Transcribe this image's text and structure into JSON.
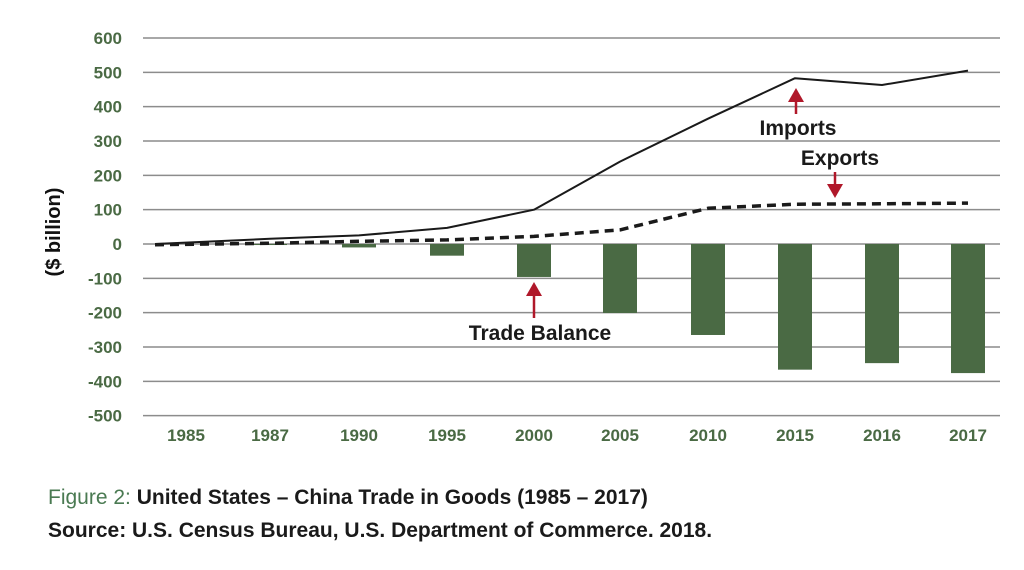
{
  "chart_data": {
    "type": "bar+line",
    "categories": [
      "1985",
      "1987",
      "1990",
      "1995",
      "2000",
      "2005",
      "2010",
      "2015",
      "2016",
      "2017"
    ],
    "ylabel": "($ billion)",
    "ylim": [
      -500,
      600
    ],
    "yticks": [
      600,
      500,
      400,
      300,
      200,
      100,
      0,
      -100,
      -200,
      -300,
      -400,
      -500
    ],
    "grid": true,
    "series": [
      {
        "name": "Imports",
        "type": "line",
        "style": "solid",
        "values": [
          0,
          15,
          25,
          47,
          100,
          240,
          365,
          483,
          463,
          505
        ]
      },
      {
        "name": "Exports",
        "type": "line",
        "style": "dashed",
        "values": [
          -2,
          2,
          8,
          12,
          22,
          41,
          104,
          116,
          117,
          119
        ]
      },
      {
        "name": "Trade Balance",
        "type": "bar",
        "values": [
          0,
          -3,
          -10,
          -34,
          -96,
          -201,
          -265,
          -366,
          -347,
          -376
        ]
      }
    ],
    "annotations": [
      {
        "text": "Imports",
        "target": "Imports",
        "at": "2015"
      },
      {
        "text": "Exports",
        "target": "Exports",
        "at": "2015-2016"
      },
      {
        "text": "Trade Balance",
        "target": "Trade Balance",
        "at": "2000"
      }
    ],
    "colors": {
      "bar": "#4a6a44",
      "tick": "#4a6a44",
      "line": "#1a1a1a",
      "arrow": "#b0182a",
      "grid": "#8c8c8c"
    }
  },
  "caption": {
    "figure_label": "Figure 2:",
    "title": "United States – China Trade in Goods (1985 – 2017)",
    "source": "Source: U.S. Census Bureau, U.S. Department of Commerce. 2018."
  }
}
